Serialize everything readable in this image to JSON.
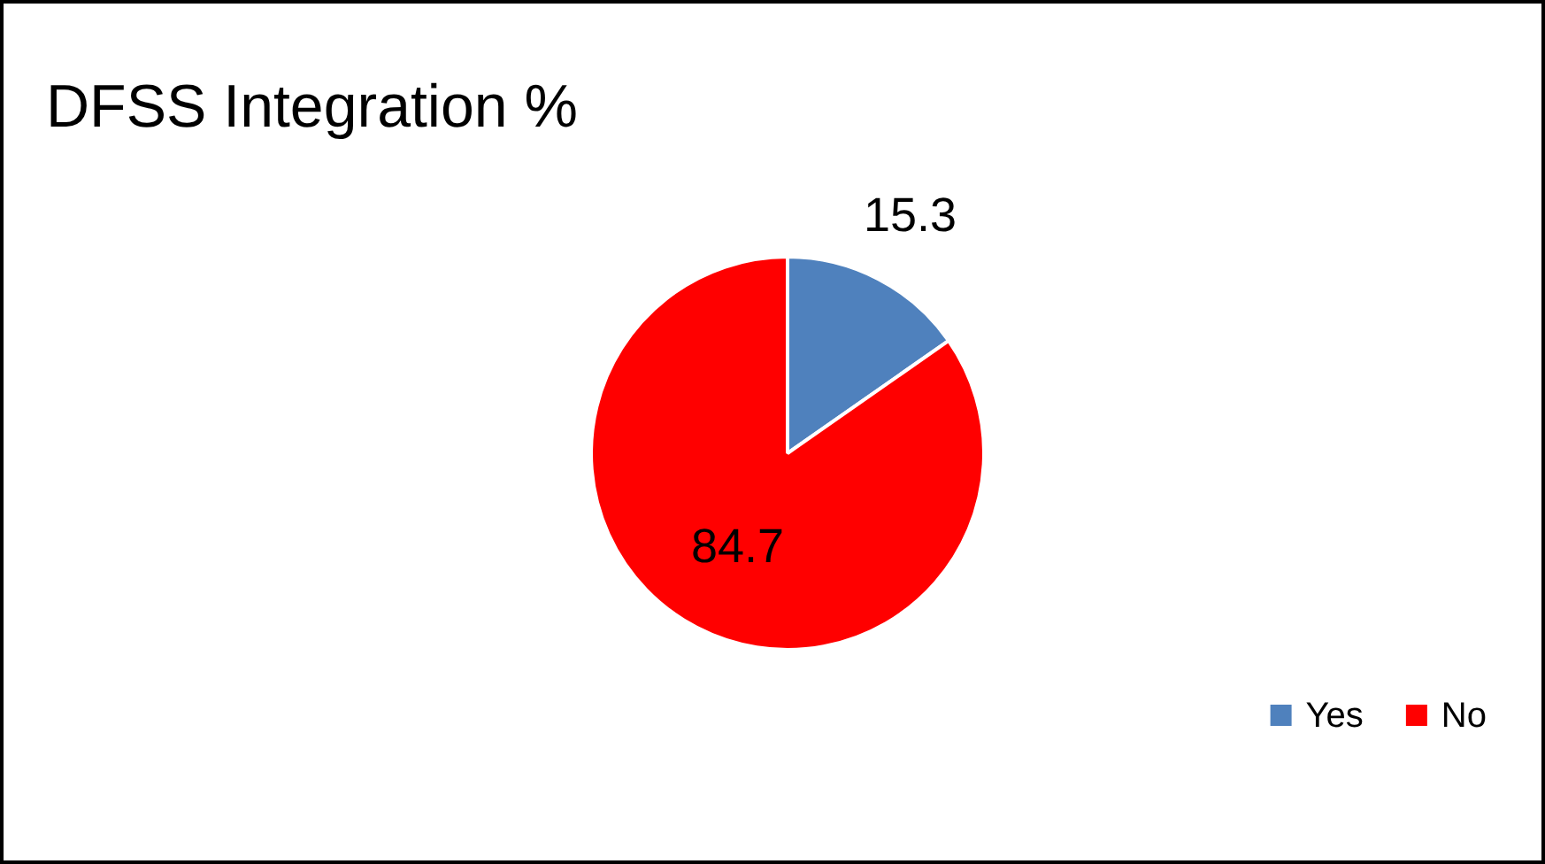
{
  "chart_data": {
    "type": "pie",
    "title": "DFSS Integration %",
    "categories": [
      "Yes",
      "No"
    ],
    "values": [
      15.3,
      84.7
    ],
    "colors": [
      "#4f81bd",
      "#ff0000"
    ],
    "data_labels": true,
    "legend": "bottom right"
  }
}
